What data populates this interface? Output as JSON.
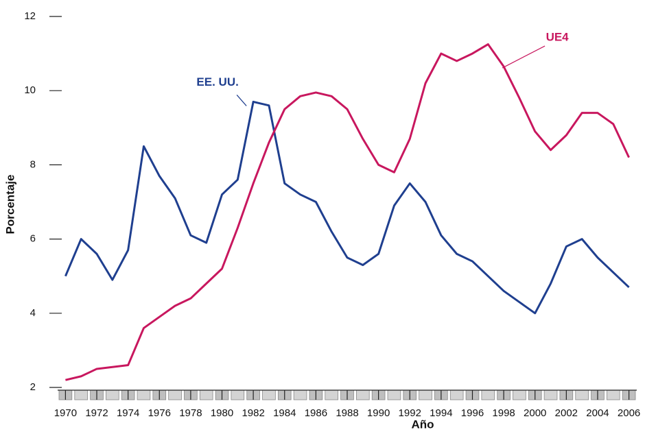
{
  "chart_data": {
    "type": "line",
    "x_label": "Año",
    "y_label": "Porcentaje",
    "x": [
      1970,
      1971,
      1972,
      1973,
      1974,
      1975,
      1976,
      1977,
      1978,
      1979,
      1980,
      1981,
      1982,
      1983,
      1984,
      1985,
      1986,
      1987,
      1988,
      1989,
      1990,
      1991,
      1992,
      1993,
      1994,
      1995,
      1996,
      1997,
      1998,
      1999,
      2000,
      2001,
      2002,
      2003,
      2004,
      2005,
      2006
    ],
    "series": [
      {
        "name": "EE. UU.",
        "color": "#1f3f8f",
        "values": [
          5.0,
          6.0,
          5.6,
          4.9,
          5.7,
          8.5,
          7.7,
          7.1,
          6.1,
          5.9,
          7.2,
          7.6,
          9.7,
          9.6,
          7.5,
          7.2,
          7.0,
          6.2,
          5.5,
          5.3,
          5.6,
          6.9,
          7.5,
          7.0,
          6.1,
          5.6,
          5.4,
          5.0,
          4.6,
          4.3,
          4.0,
          4.8,
          5.8,
          6.0,
          5.5,
          5.1,
          4.7
        ]
      },
      {
        "name": "UE4",
        "color": "#c8175e",
        "values": [
          2.2,
          2.3,
          2.5,
          2.55,
          2.6,
          3.6,
          3.9,
          4.2,
          4.4,
          4.8,
          5.2,
          6.3,
          7.5,
          8.6,
          9.5,
          9.85,
          9.95,
          9.85,
          9.5,
          8.7,
          8.0,
          7.8,
          8.7,
          10.2,
          11.0,
          10.8,
          11.0,
          11.25,
          10.65,
          9.8,
          8.9,
          8.4,
          8.8,
          9.4,
          9.4,
          9.1,
          8.2
        ]
      }
    ],
    "xlim": [
      1969.5,
      2006.5
    ],
    "xticks": [
      1970,
      1972,
      1974,
      1976,
      1978,
      1980,
      1982,
      1984,
      1986,
      1988,
      1990,
      1992,
      1994,
      1996,
      1998,
      2000,
      2002,
      2004,
      2006
    ],
    "ylim": [
      2,
      12
    ],
    "yticks": [
      2,
      4,
      6,
      8,
      10,
      12
    ]
  }
}
